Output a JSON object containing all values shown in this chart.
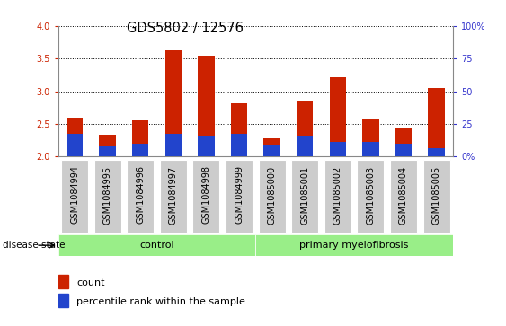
{
  "title": "GDS5802 / 12576",
  "samples": [
    "GSM1084994",
    "GSM1084995",
    "GSM1084996",
    "GSM1084997",
    "GSM1084998",
    "GSM1084999",
    "GSM1085000",
    "GSM1085001",
    "GSM1085002",
    "GSM1085003",
    "GSM1085004",
    "GSM1085005"
  ],
  "red_heights": [
    2.6,
    2.33,
    2.55,
    3.63,
    3.55,
    2.82,
    2.28,
    2.86,
    3.22,
    2.58,
    2.44,
    3.05
  ],
  "blue_heights": [
    2.35,
    2.15,
    2.2,
    2.35,
    2.32,
    2.35,
    2.17,
    2.32,
    2.22,
    2.22,
    2.2,
    2.13
  ],
  "ymin": 2.0,
  "ymax": 4.0,
  "yticks": [
    2.0,
    2.5,
    3.0,
    3.5,
    4.0
  ],
  "red_color": "#cc2200",
  "blue_color": "#2244cc",
  "bar_width": 0.5,
  "group_bar_color": "#99ee88",
  "control_label": "control",
  "myelofibrosis_label": "primary myelofibrosis",
  "disease_state_label": "disease state",
  "legend_count_label": "count",
  "legend_pct_label": "percentile rank within the sample",
  "ytick_color": "#cc2200",
  "y2tick_color": "#3333cc",
  "title_fontsize": 10.5,
  "tick_fontsize": 7.0,
  "bar_bottom": 2.0,
  "y2_positions": [
    2.0,
    2.5,
    3.0,
    3.5,
    4.0
  ],
  "y2_labels": [
    "0%",
    "25",
    "50",
    "75",
    "100%"
  ]
}
